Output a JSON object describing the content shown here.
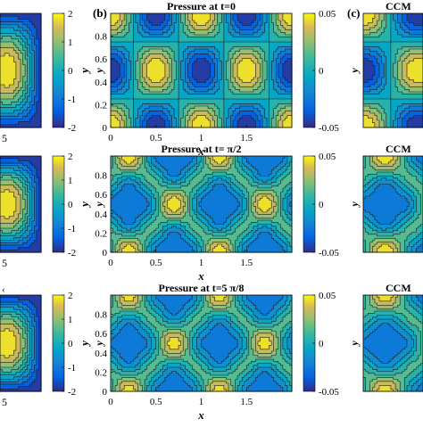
{
  "chart_data": [
    {
      "type": "heatmap",
      "panel": "left-cropped",
      "colorbar_ticks": [
        "2",
        "1",
        "0",
        "-1",
        "-2"
      ],
      "colorbar_range": [
        -2,
        2
      ],
      "x_tick_labels_visible": [
        "5",
        "5",
        "5"
      ],
      "row_markers_visible": [
        "",
        "",
        "‹"
      ]
    },
    {
      "type": "heatmap",
      "panel": "(b)",
      "rows": [
        {
          "title": "Pressure at t=0",
          "time_label": "t=0",
          "field": "cos(2πx)·cos(2πy)·0.05",
          "amplitude": 0.05
        },
        {
          "title": "Pressure at t= π/2",
          "time_label": "t= π/2",
          "field": "rounded cells",
          "amplitude": 0.05
        },
        {
          "title": "Pressure at t=5 π/8",
          "time_label": "t=5 π/8",
          "field": "rounded cells",
          "amplitude": 0.05
        }
      ],
      "xlabel": "x",
      "ylabel": "y",
      "xlim": [
        0,
        2
      ],
      "ylim": [
        0,
        1
      ],
      "x_ticks": [
        "0",
        "0.5",
        "1",
        "1.5"
      ],
      "y_ticks": [
        "0.8",
        "0.6",
        "0.4",
        "0.2",
        "0"
      ],
      "colorbar_ticks": [
        "0.05",
        "0",
        "-0.05"
      ],
      "colorbar_range": [
        -0.05,
        0.05
      ],
      "colormap": "parula",
      "contour_levels": 10
    },
    {
      "type": "heatmap",
      "panel": "(c)",
      "titles": [
        "CCM",
        "CCM",
        "CCM"
      ],
      "label": "(c)"
    }
  ],
  "panel_labels": {
    "b": "(b)",
    "c": "(c)"
  }
}
